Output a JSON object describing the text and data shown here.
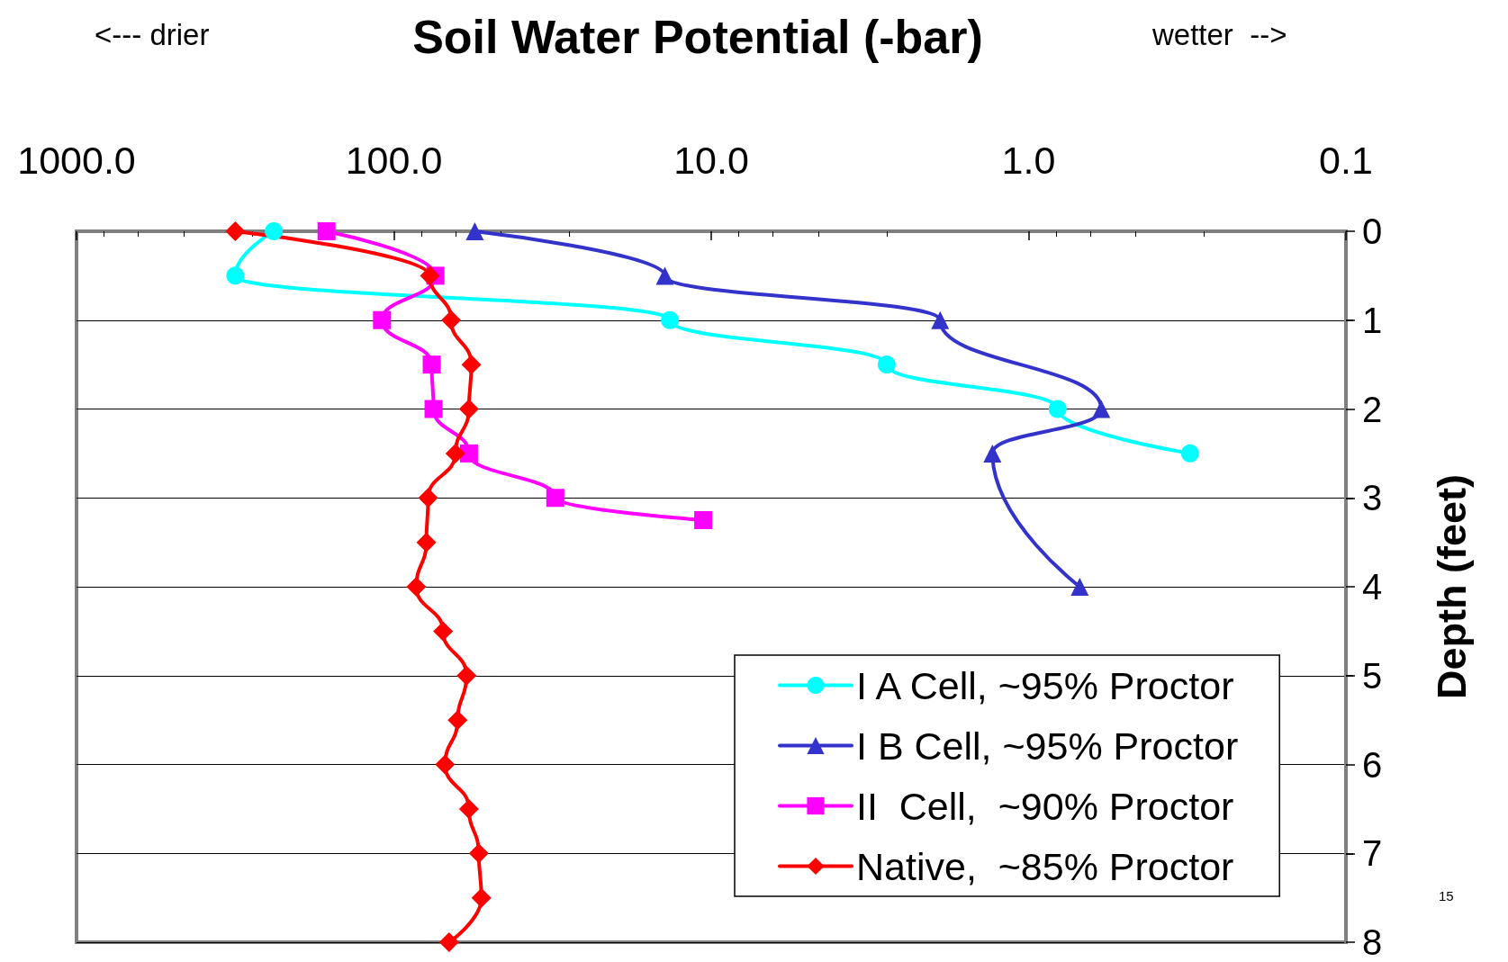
{
  "chart_data": {
    "type": "line",
    "title": "Soil Water Potential (-bar)",
    "ylabel": "Depth (feet)",
    "annotations": [
      "<--- drier",
      "wetter  -->",
      "15"
    ],
    "log": "x",
    "xlim": [
      1000,
      0.1
    ],
    "xticks": [
      {
        "value": 1000,
        "label": "1000.0"
      },
      {
        "value": 100,
        "label": "100.0"
      },
      {
        "value": 10,
        "label": "10.0"
      },
      {
        "value": 1,
        "label": "1.0"
      },
      {
        "value": 0.1,
        "label": "0.1"
      }
    ],
    "ylim": [
      8,
      0
    ],
    "yticks": [
      0,
      1,
      2,
      3,
      4,
      5,
      6,
      7,
      8
    ],
    "grid": "y",
    "legend": "bottom right",
    "line_style": "solid",
    "series": [
      {
        "name": "I A Cell, ~95% Proctor",
        "color": "#00ffff",
        "marker": "circle",
        "x": [
          239,
          316,
          13.5,
          2.8,
          0.81,
          0.31
        ],
        "values": [
          0,
          0.5,
          1,
          1.5,
          2,
          2.5
        ]
      },
      {
        "name": "I B Cell, ~95% Proctor",
        "color": "#3333cc",
        "marker": "triangle",
        "x": [
          55.6,
          14,
          1.9,
          0.59,
          1.3,
          0.69
        ],
        "values": [
          0,
          0.5,
          1,
          2,
          2.5,
          4
        ]
      },
      {
        "name": "II  Cell,  ~90% Proctor",
        "color": "#ff00ff",
        "marker": "square",
        "x": [
          163,
          74,
          109,
          76,
          75,
          58,
          31,
          10.6
        ],
        "values": [
          0,
          0.5,
          1,
          1.5,
          2,
          2.5,
          3,
          3.25
        ]
      },
      {
        "name": "Native,  ~85% Proctor",
        "color": "#ff0000",
        "marker": "diamond",
        "x": [
          316,
          77,
          66,
          57,
          58,
          64,
          78,
          79,
          85,
          70,
          59,
          63,
          69,
          58,
          54,
          53,
          67
        ],
        "values": [
          0,
          0.5,
          1,
          1.5,
          2,
          2.5,
          3,
          3.5,
          4,
          4.5,
          5,
          5.5,
          6,
          6.5,
          7,
          7.5,
          8
        ]
      }
    ]
  }
}
